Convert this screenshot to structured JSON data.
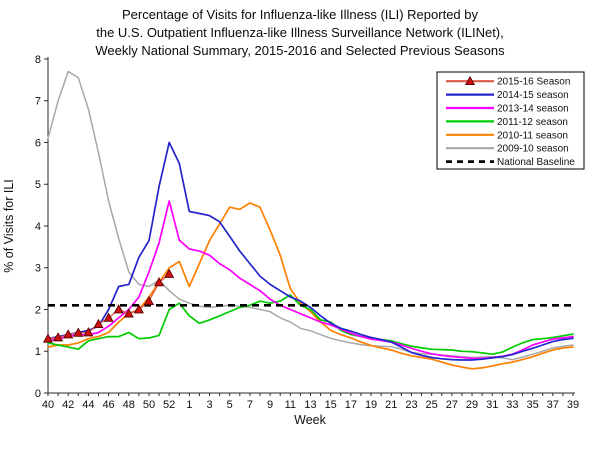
{
  "title_lines": [
    "Percentage of Visits for Influenza-like Illness (ILI) Reported by",
    "the U.S. Outpatient Influenza-like Illness Surveillance Network (ILINet),",
    "Weekly National Summary, 2015-2016 and Selected Previous Seasons"
  ],
  "chart_data": {
    "type": "line",
    "xlabel": "Week",
    "ylabel": "% of Visits for ILI",
    "ylim": [
      0,
      8
    ],
    "yticks": [
      0,
      1,
      2,
      3,
      4,
      5,
      6,
      7,
      8
    ],
    "grid": false,
    "legend_position": "top-right",
    "x_categories": [
      "40",
      "41",
      "42",
      "43",
      "44",
      "45",
      "46",
      "47",
      "48",
      "49",
      "50",
      "51",
      "52",
      "53",
      "1",
      "2",
      "3",
      "4",
      "5",
      "6",
      "7",
      "8",
      "9",
      "10",
      "11",
      "12",
      "13",
      "14",
      "15",
      "16",
      "17",
      "18",
      "19",
      "20",
      "21",
      "22",
      "23",
      "24",
      "25",
      "26",
      "27",
      "28",
      "29",
      "30",
      "31",
      "32",
      "33",
      "34",
      "35",
      "36",
      "37",
      "38",
      "39"
    ],
    "x_labeled_ticks": [
      "40",
      "42",
      "44",
      "46",
      "48",
      "50",
      "52",
      "1",
      "3",
      "5",
      "7",
      "9",
      "11",
      "13",
      "15",
      "17",
      "19",
      "21",
      "23",
      "25",
      "27",
      "29",
      "31",
      "33",
      "35",
      "37",
      "39"
    ],
    "series": [
      {
        "name": "2015-16 Season",
        "color": "#dd5a4a",
        "line_width": 1.3,
        "marker": "triangle",
        "marker_fill": "#cf1010",
        "marker_edge": "#5a0000",
        "values": [
          1.3,
          1.33,
          1.4,
          1.44,
          1.45,
          1.65,
          1.8,
          2.0,
          1.9,
          2.0,
          2.2,
          2.65,
          2.85,
          null,
          null,
          null,
          null,
          null,
          null,
          null,
          null,
          null,
          null,
          null,
          null,
          null,
          null,
          null,
          null,
          null,
          null,
          null,
          null,
          null,
          null,
          null,
          null,
          null,
          null,
          null,
          null,
          null,
          null,
          null,
          null,
          null,
          null,
          null,
          null,
          null,
          null,
          null,
          null
        ]
      },
      {
        "name": "2014-15 season",
        "color": "#2424cc",
        "line_width": 1.7,
        "marker": "none",
        "values": [
          1.3,
          1.35,
          1.4,
          1.45,
          1.5,
          1.6,
          2.0,
          2.55,
          2.6,
          3.25,
          3.65,
          4.95,
          6.0,
          5.5,
          4.35,
          4.3,
          4.25,
          4.1,
          3.75,
          3.4,
          3.1,
          2.8,
          2.6,
          2.45,
          2.3,
          2.2,
          2.05,
          1.85,
          1.67,
          1.55,
          1.48,
          1.4,
          1.33,
          1.28,
          1.22,
          1.1,
          0.97,
          0.9,
          0.85,
          0.82,
          0.8,
          0.79,
          0.79,
          0.81,
          0.84,
          0.87,
          0.92,
          1.0,
          1.07,
          1.15,
          1.23,
          1.28,
          1.31
        ]
      },
      {
        "name": "2013-14 season",
        "color": "#ff00ff",
        "line_width": 1.7,
        "marker": "none",
        "values": [
          1.25,
          1.3,
          1.35,
          1.4,
          1.4,
          1.45,
          1.6,
          1.8,
          2.0,
          2.3,
          2.9,
          3.6,
          4.6,
          3.66,
          3.45,
          3.4,
          3.3,
          3.1,
          2.95,
          2.75,
          2.6,
          2.45,
          2.25,
          2.1,
          2.0,
          1.9,
          1.8,
          1.7,
          1.63,
          1.53,
          1.43,
          1.35,
          1.29,
          1.26,
          1.22,
          1.15,
          1.07,
          1.0,
          0.94,
          0.9,
          0.87,
          0.85,
          0.83,
          0.83,
          0.85,
          0.88,
          0.93,
          1.03,
          1.15,
          1.22,
          1.29,
          1.32,
          1.35
        ]
      },
      {
        "name": "2011-12 season",
        "color": "#00cc00",
        "line_width": 1.7,
        "marker": "none",
        "values": [
          1.2,
          1.15,
          1.1,
          1.05,
          1.25,
          1.3,
          1.35,
          1.35,
          1.45,
          1.3,
          1.32,
          1.38,
          2.0,
          2.15,
          1.85,
          1.67,
          1.75,
          1.85,
          1.95,
          2.05,
          2.1,
          2.2,
          2.15,
          2.2,
          2.35,
          2.1,
          2.0,
          1.75,
          1.7,
          1.5,
          1.4,
          1.35,
          1.3,
          1.28,
          1.25,
          1.18,
          1.12,
          1.08,
          1.05,
          1.04,
          1.03,
          1.0,
          0.99,
          0.96,
          0.93,
          0.98,
          1.1,
          1.2,
          1.28,
          1.3,
          1.33,
          1.37,
          1.41
        ]
      },
      {
        "name": "2010-11 season",
        "color": "#ff7f00",
        "line_width": 1.7,
        "marker": "none",
        "values": [
          1.1,
          1.15,
          1.15,
          1.2,
          1.3,
          1.35,
          1.45,
          1.7,
          1.9,
          2.0,
          2.3,
          2.65,
          3.0,
          3.15,
          2.55,
          3.1,
          3.65,
          4.05,
          4.45,
          4.4,
          4.55,
          4.45,
          3.9,
          3.3,
          2.5,
          2.15,
          1.95,
          1.7,
          1.5,
          1.4,
          1.32,
          1.22,
          1.14,
          1.08,
          1.03,
          0.95,
          0.89,
          0.85,
          0.81,
          0.74,
          0.67,
          0.62,
          0.58,
          0.6,
          0.65,
          0.7,
          0.74,
          0.8,
          0.87,
          0.95,
          1.03,
          1.08,
          1.1
        ]
      },
      {
        "name": "2009-10 season",
        "color": "#a8a8a8",
        "line_width": 1.5,
        "marker": "none",
        "values": [
          6.1,
          7.0,
          7.7,
          7.55,
          6.8,
          5.75,
          4.6,
          3.7,
          2.9,
          2.6,
          2.55,
          2.7,
          2.45,
          2.25,
          2.15,
          2.08,
          2.05,
          2.08,
          2.1,
          2.08,
          2.05,
          2.0,
          1.95,
          1.8,
          1.7,
          1.55,
          1.49,
          1.4,
          1.31,
          1.25,
          1.2,
          1.16,
          1.13,
          1.12,
          1.11,
          1.05,
          0.97,
          0.94,
          0.93,
          0.91,
          0.89,
          0.87,
          0.85,
          0.86,
          0.87,
          0.84,
          0.8,
          0.86,
          0.93,
          1.0,
          1.08,
          1.12,
          1.15
        ]
      }
    ],
    "baseline": {
      "label": "National Baseline",
      "value": 2.1,
      "color": "#000000",
      "dashed": true
    }
  }
}
